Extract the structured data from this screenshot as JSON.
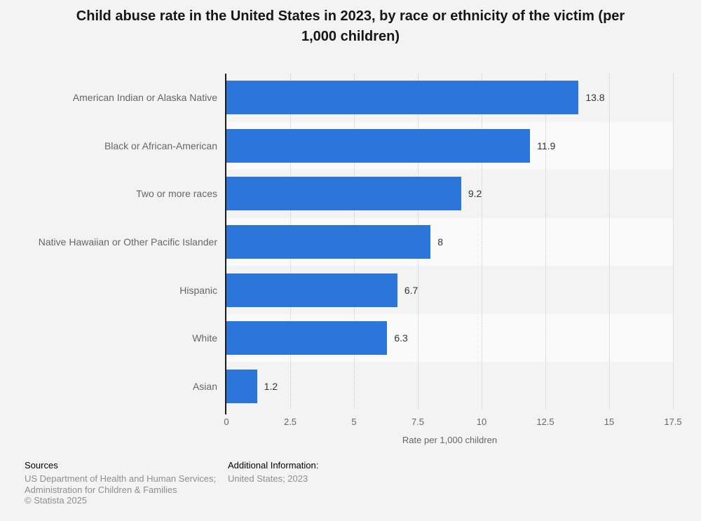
{
  "title": "Child abuse rate in the United States in 2023, by race or ethnicity of the victim (per 1,000 children)",
  "title_lines": [
    "Child abuse rate in the United States in 2023, by race or ethnicity of the victim (per",
    "1,000 children)"
  ],
  "chart_data": {
    "type": "bar",
    "orientation": "horizontal",
    "title": "Child abuse rate in the United States in 2023, by race or ethnicity of the victim (per 1,000 children)",
    "categories": [
      "American Indian or Alaska Native",
      "Black or African-American",
      "Two or more races",
      "Native Hawaiian or Other Pacific Islander",
      "Hispanic",
      "White",
      "Asian"
    ],
    "values": [
      13.8,
      11.9,
      9.2,
      8,
      6.7,
      6.3,
      1.2
    ],
    "value_labels": [
      "13.8",
      "11.9",
      "9.2",
      "8",
      "6.7",
      "6.3",
      "1.2"
    ],
    "xlabel": "Rate per 1,000 children",
    "ylabel": "",
    "xlim": [
      0,
      17.5
    ],
    "x_ticks": [
      0,
      2.5,
      5,
      7.5,
      10,
      12.5,
      15,
      17.5
    ],
    "x_tick_labels": [
      "0",
      "2.5",
      "5",
      "7.5",
      "10",
      "12.5",
      "15",
      "17.5"
    ],
    "grid": "vertical dotted gridlines at each x tick",
    "legend": "none",
    "row_striping": "alternating rows shaded in plot area",
    "bar_color": "#2c75db"
  },
  "footer": {
    "sources_heading": "Sources",
    "sources_lines": [
      "US Department of Health and Human Services;",
      "Administration for Children & Families",
      "© Statista 2025"
    ],
    "additional_heading": "Additional Information:",
    "additional_lines": [
      "United States; 2023"
    ]
  },
  "colors": {
    "page-bg": "#f3f3f3",
    "row-stripe": "#fafafa",
    "bar": "#2c75db",
    "grid": "#c9c9c9",
    "axis": "#1a1a1a",
    "title-text": "#161616",
    "category-text": "#666666",
    "value-text": "#333333",
    "tick-text": "#666666",
    "footer-heading": "#000000",
    "footer-text": "#8f8f8f"
  }
}
